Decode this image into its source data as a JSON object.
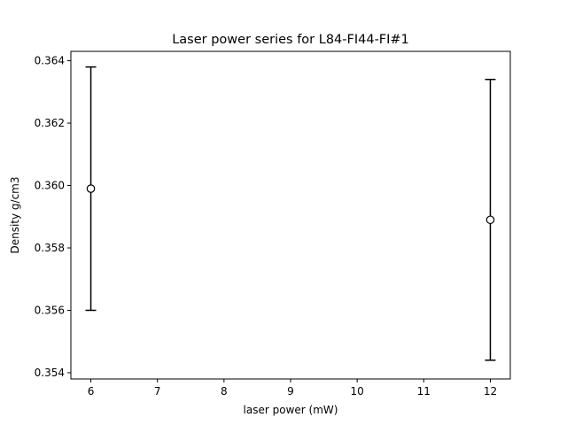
{
  "chart_data": {
    "type": "scatter",
    "title": "Laser power series for L84-FI44-FI#1",
    "xlabel": "laser power (mW)",
    "ylabel": "Density g/cm3",
    "xlim": [
      5.7,
      12.3
    ],
    "ylim": [
      0.3538,
      0.3643
    ],
    "x_ticks": [
      6,
      7,
      8,
      9,
      10,
      11,
      12
    ],
    "x_tick_labels": [
      "6",
      "7",
      "8",
      "9",
      "10",
      "11",
      "12"
    ],
    "y_ticks": [
      0.354,
      0.356,
      0.358,
      0.36,
      0.362,
      0.364
    ],
    "y_tick_labels": [
      "0.354",
      "0.356",
      "0.358",
      "0.360",
      "0.362",
      "0.364"
    ],
    "grid": false,
    "legend": "none",
    "series": [
      {
        "x": [
          6,
          12
        ],
        "y": [
          0.3599,
          0.3589
        ],
        "y_err": [
          0.0039,
          0.0045
        ],
        "marker": "open-circle",
        "color": "#000000"
      }
    ]
  }
}
